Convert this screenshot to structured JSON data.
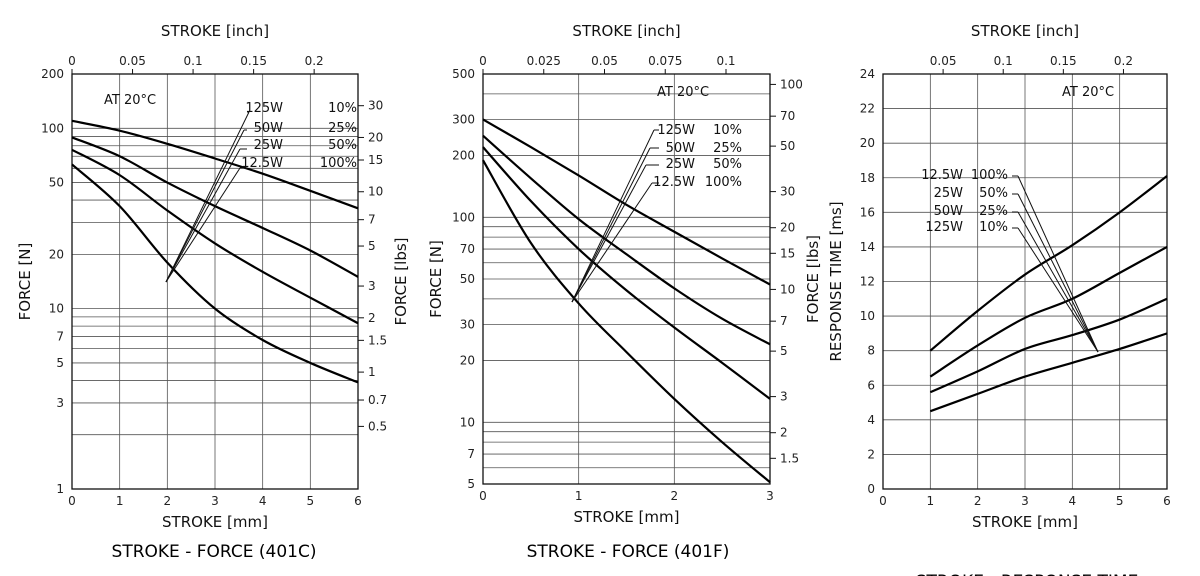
{
  "chart_data": [
    {
      "type": "line",
      "title": "STROKE - FORCE (401C)",
      "xlabel": "STROKE [mm]",
      "x2label": "STROKE [inch]",
      "ylabel": "FORCE [N]",
      "y2label": "FORCE [lbs]",
      "annotation": "AT 20°C",
      "xlim": [
        0,
        6
      ],
      "ylim": [
        1,
        200
      ],
      "y_scale": "log",
      "x_ticks": [
        "0",
        "1",
        "2",
        "3",
        "4",
        "5",
        "6"
      ],
      "x2_ticks": [
        {
          "v": 0,
          "label": "0"
        },
        {
          "v": 0.05,
          "label": "0.05"
        },
        {
          "v": 0.1,
          "label": "0.1"
        },
        {
          "v": 0.15,
          "label": "0.15"
        },
        {
          "v": 0.2,
          "label": "0.2"
        }
      ],
      "y_ticks": [
        "1",
        "3",
        "5",
        "7",
        "10",
        "20",
        "50",
        "100",
        "200"
      ],
      "y2_ticks": [
        {
          "v": 0.5,
          "label": "0.5"
        },
        {
          "v": 0.7,
          "label": "0.7"
        },
        {
          "v": 1,
          "label": "1"
        },
        {
          "v": 1.5,
          "label": "1.5"
        },
        {
          "v": 2,
          "label": "2"
        },
        {
          "v": 3,
          "label": "3"
        },
        {
          "v": 5,
          "label": "5"
        },
        {
          "v": 7,
          "label": "7"
        },
        {
          "v": 10,
          "label": "10"
        },
        {
          "v": 15,
          "label": "15"
        },
        {
          "v": 20,
          "label": "20"
        },
        {
          "v": 30,
          "label": "30"
        }
      ],
      "legend": [
        {
          "power": "125W",
          "duty": "10%"
        },
        {
          "power": "50W",
          "duty": "25%"
        },
        {
          "power": "25W",
          "duty": "50%"
        },
        {
          "power": "12.5W",
          "duty": "100%"
        }
      ],
      "series": [
        {
          "name": "125W 10%",
          "x": [
            0,
            1,
            2,
            3,
            4,
            5,
            6
          ],
          "y": [
            110,
            97,
            82,
            68,
            56,
            45,
            36
          ]
        },
        {
          "name": "50W 25%",
          "x": [
            0,
            1,
            2,
            3,
            4,
            5,
            6
          ],
          "y": [
            89,
            70,
            50,
            37,
            28,
            21,
            15
          ]
        },
        {
          "name": "25W 50%",
          "x": [
            0,
            1,
            2,
            3,
            4,
            5,
            6
          ],
          "y": [
            76,
            55,
            35,
            23,
            16,
            11.5,
            8.3
          ]
        },
        {
          "name": "12.5W 100%",
          "x": [
            0,
            1,
            2,
            3,
            4,
            5,
            6
          ],
          "y": [
            63,
            37,
            18,
            10,
            6.7,
            5,
            3.9
          ]
        }
      ]
    },
    {
      "type": "line",
      "title": "STROKE - FORCE (401F)",
      "xlabel": "STROKE [mm]",
      "x2label": "STROKE [inch]",
      "ylabel": "FORCE [N]",
      "y2label": "FORCE [lbs]",
      "annotation": "AT 20°C",
      "xlim": [
        0,
        3
      ],
      "ylim": [
        5,
        500
      ],
      "y_scale": "log",
      "x_ticks": [
        "0",
        "1",
        "2",
        "3"
      ],
      "x2_ticks": [
        {
          "v": 0,
          "label": "0"
        },
        {
          "v": 0.025,
          "label": "0.025"
        },
        {
          "v": 0.05,
          "label": "0.05"
        },
        {
          "v": 0.075,
          "label": "0.075"
        },
        {
          "v": 0.1,
          "label": "0.1"
        }
      ],
      "y_ticks": [
        "5",
        "7",
        "10",
        "20",
        "30",
        "50",
        "70",
        "100",
        "200",
        "300",
        "500"
      ],
      "y2_ticks": [
        {
          "v": 1.5,
          "label": "1.5"
        },
        {
          "v": 2,
          "label": "2"
        },
        {
          "v": 3,
          "label": "3"
        },
        {
          "v": 5,
          "label": "5"
        },
        {
          "v": 7,
          "label": "7"
        },
        {
          "v": 10,
          "label": "10"
        },
        {
          "v": 15,
          "label": "15"
        },
        {
          "v": 20,
          "label": "20"
        },
        {
          "v": 30,
          "label": "30"
        },
        {
          "v": 50,
          "label": "50"
        },
        {
          "v": 70,
          "label": "70"
        },
        {
          "v": 100,
          "label": "100"
        }
      ],
      "legend": [
        {
          "power": "125W",
          "duty": "10%"
        },
        {
          "power": "50W",
          "duty": "25%"
        },
        {
          "power": "25W",
          "duty": "50%"
        },
        {
          "power": "12.5W",
          "duty": "100%"
        }
      ],
      "series": [
        {
          "name": "125W 10%",
          "x": [
            0,
            0.5,
            1,
            1.5,
            2,
            2.5,
            3
          ],
          "y": [
            300,
            220,
            160,
            115,
            85,
            63,
            47
          ]
        },
        {
          "name": "50W 25%",
          "x": [
            0,
            0.5,
            1,
            1.5,
            2,
            2.5,
            3
          ],
          "y": [
            250,
            155,
            98,
            66,
            45,
            32,
            24
          ]
        },
        {
          "name": "25W 50%",
          "x": [
            0,
            0.5,
            1,
            1.5,
            2,
            2.5,
            3
          ],
          "y": [
            220,
            120,
            70,
            44,
            29,
            19.5,
            13
          ]
        },
        {
          "name": "12.5W 100%",
          "x": [
            0,
            0.5,
            1,
            1.5,
            2,
            2.5,
            3
          ],
          "y": [
            190,
            75,
            38,
            22,
            13,
            8,
            5.1
          ]
        }
      ]
    },
    {
      "type": "line",
      "title": "STROKE - RESPONSE TIME",
      "xlabel": "STROKE [mm]",
      "x2label": "STROKE [inch]",
      "ylabel": "RESPONSE TIME [ms]",
      "annotation": "AT 20°C",
      "xlim": [
        0,
        6
      ],
      "ylim": [
        0,
        24
      ],
      "y_scale": "linear",
      "x_ticks": [
        "0",
        "1",
        "2",
        "3",
        "4",
        "5",
        "6"
      ],
      "x2_ticks": [
        {
          "v": 0.05,
          "label": "0.05"
        },
        {
          "v": 0.1,
          "label": "0.1"
        },
        {
          "v": 0.15,
          "label": "0.15"
        },
        {
          "v": 0.2,
          "label": "0.2"
        }
      ],
      "y_ticks": [
        "0",
        "2",
        "4",
        "6",
        "8",
        "10",
        "12",
        "14",
        "16",
        "18",
        "20",
        "22",
        "24"
      ],
      "legend": [
        {
          "power": "12.5W",
          "duty": "100%"
        },
        {
          "power": "25W",
          "duty": "50%"
        },
        {
          "power": "50W",
          "duty": "25%"
        },
        {
          "power": "125W",
          "duty": "10%"
        }
      ],
      "series": [
        {
          "name": "12.5W 100%",
          "x": [
            1,
            2,
            3,
            4,
            5,
            6
          ],
          "y": [
            8,
            10.3,
            12.4,
            14.1,
            16,
            18.1
          ]
        },
        {
          "name": "25W 50%",
          "x": [
            1,
            2,
            3,
            4,
            5,
            6
          ],
          "y": [
            6.5,
            8.3,
            9.9,
            11,
            12.5,
            14
          ]
        },
        {
          "name": "50W 25%",
          "x": [
            1,
            2,
            3,
            4,
            5,
            6
          ],
          "y": [
            5.6,
            6.8,
            8.1,
            8.9,
            9.8,
            11
          ]
        },
        {
          "name": "125W 10%",
          "x": [
            1,
            2,
            3,
            4,
            5,
            6
          ],
          "y": [
            4.5,
            5.5,
            6.5,
            7.3,
            8.1,
            9
          ]
        }
      ]
    }
  ]
}
